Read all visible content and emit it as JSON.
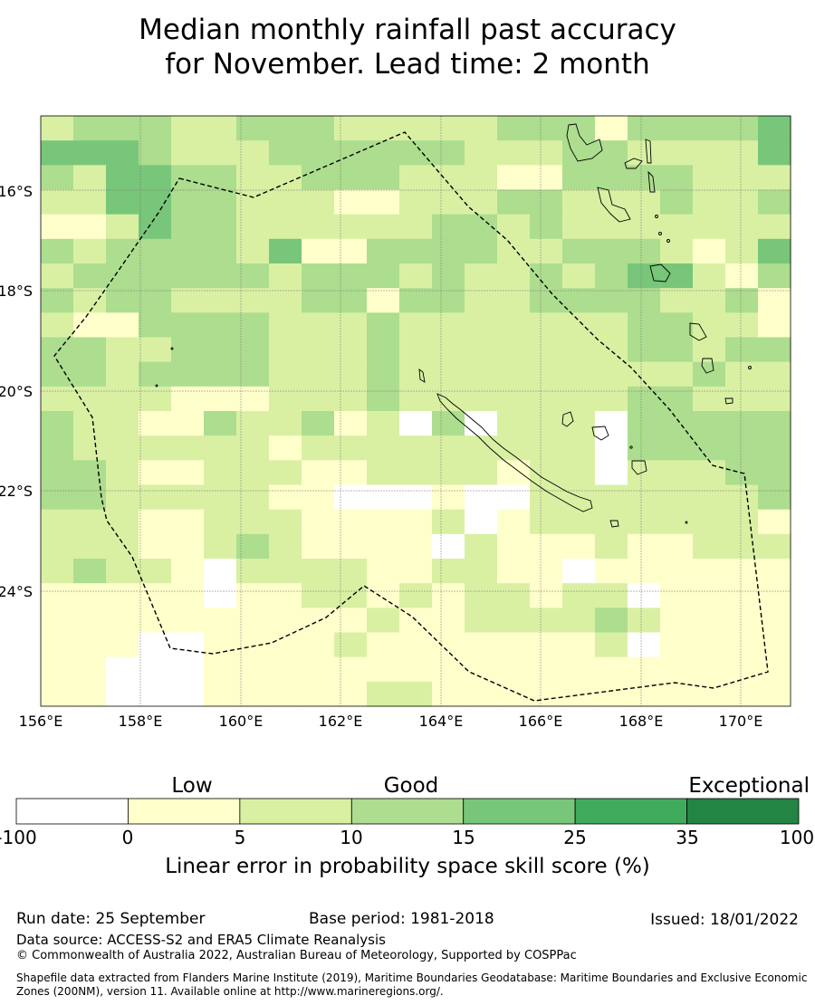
{
  "title": {
    "line1": "Median monthly rainfall past accuracy",
    "line2": "for November. Lead time: 2 month"
  },
  "map": {
    "lon_ticks": [
      "156°E",
      "158°E",
      "160°E",
      "162°E",
      "164°E",
      "166°E",
      "168°E",
      "170°E"
    ],
    "lat_ticks": [
      "16°S",
      "18°S",
      "20°S",
      "22°S",
      "24°S"
    ],
    "grid": {
      "rows": [
        "23332233322222333133334",
        "44432223333332223322224",
        "32443322333222113333222",
        "22443322211222332223223",
        "11243322222233232222222",
        "32333324113333223332124",
        "23333332333232232344213",
        "32332222331332233332231",
        "21133332223222222233221",
        "33223332223222222233233",
        "33233332223222222222322",
        "22221112223222222233222",
        "32211322312030222033333",
        "32222221222222222033333",
        "33211222112222122022233",
        "33222221100010022222223",
        "22211222111120122222221",
        "22211232111102111211222",
        "23221022221122110111111",
        "11111011221212212201111",
        "11111111112112222321111",
        "11100111121111111201111",
        "11000111111111111111111",
        "11000111112211111111111"
      ]
    }
  },
  "colorbar": {
    "categories": [
      {
        "label": "Low"
      },
      {
        "label": "Good"
      },
      {
        "label": "Exceptional"
      }
    ],
    "bins": [
      {
        "from": -100,
        "to": 0,
        "color": "#ffffff"
      },
      {
        "from": 0,
        "to": 5,
        "color": "#ffffcc"
      },
      {
        "from": 5,
        "to": 10,
        "color": "#d9f0a3"
      },
      {
        "from": 10,
        "to": 15,
        "color": "#addd8e"
      },
      {
        "from": 15,
        "to": 25,
        "color": "#78c679"
      },
      {
        "from": 25,
        "to": 35,
        "color": "#41ab5d"
      },
      {
        "from": 35,
        "to": 100,
        "color": "#238443"
      }
    ],
    "ticks": [
      "-100",
      "0",
      "5",
      "10",
      "15",
      "25",
      "35",
      "100"
    ],
    "title": "Linear error in probability space skill score (%)"
  },
  "footer": {
    "run_date": "Run date: 25 September",
    "base_period": "Base period: 1981-2018",
    "issued": "Issued: 18/01/2022",
    "data_source": "Data source: ACCESS-S2 and ERA5 Climate Reanalysis",
    "copyright": "© Commonwealth of Australia 2022, Australian Bureau of Meteorology, Supported by COSPPac",
    "shapefile": "Shapefile data extracted from Flanders Marine Institute (2019), Maritime Boundaries Geodatabase: Maritime Boundaries and Exclusive Economic Zones (200NM), version 11. Available online at http://www.marineregions.org/."
  }
}
